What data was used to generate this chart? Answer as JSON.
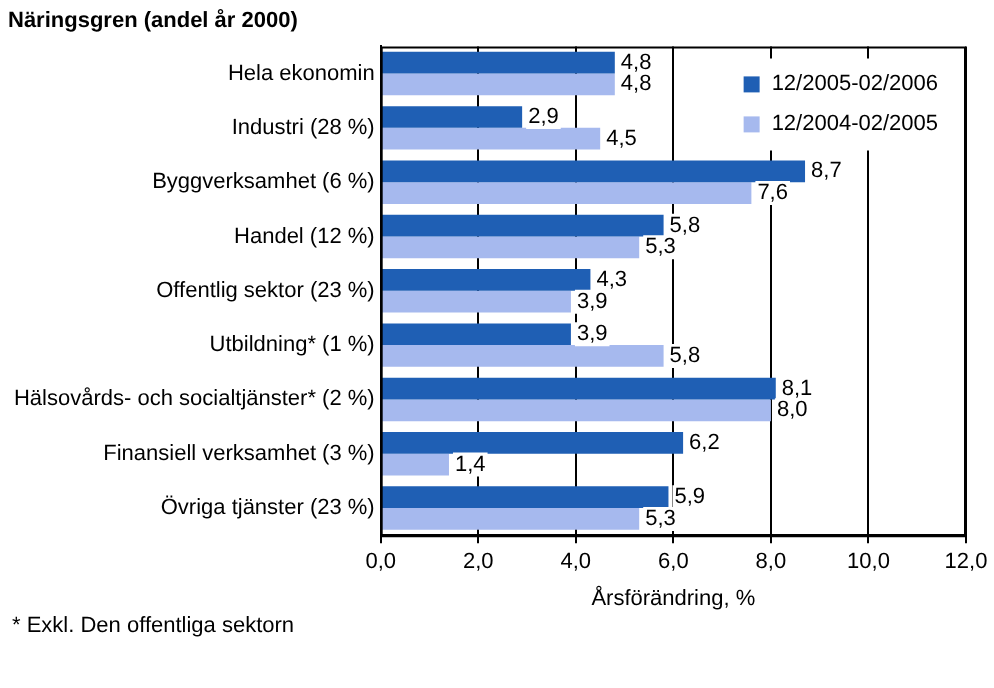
{
  "chart_data": {
    "type": "bar",
    "orientation": "horizontal",
    "title": "Näringsgren (andel år 2000)",
    "xlabel": "Årsförändring, %",
    "categories": [
      "Hela ekonomin",
      "Industri (28 %)",
      "Byggverksamhet (6 %)",
      "Handel (12 %)",
      "Offentlig sektor (23 %)",
      "Utbildning* (1 %)",
      "Hälsovårds- och socialtjänster* (2 %)",
      "Finansiell verksamhet (3 %)",
      "Övriga tjänster (23 %)"
    ],
    "series": [
      {
        "name": "12/2005-02/2006",
        "color": "#1f5fb4",
        "values": [
          4.8,
          2.9,
          8.7,
          5.8,
          4.3,
          3.9,
          8.1,
          6.2,
          5.9
        ],
        "value_labels": [
          "4,8",
          "2,9",
          "8,7",
          "5,8",
          "4,3",
          "3,9",
          "8,1",
          "6,2",
          "5,9"
        ]
      },
      {
        "name": "12/2004-02/2005",
        "color": "#a6b9ee",
        "values": [
          4.8,
          4.5,
          7.6,
          5.3,
          3.9,
          5.8,
          8.0,
          1.4,
          5.3
        ],
        "value_labels": [
          "4,8",
          "4,5",
          "7,6",
          "5,3",
          "3,9",
          "5,8",
          "8,0",
          "1,4",
          "5,3"
        ]
      }
    ],
    "xlim": [
      0,
      12
    ],
    "xticks": [
      {
        "value": 0,
        "label": "0,0"
      },
      {
        "value": 2,
        "label": "2,0"
      },
      {
        "value": 4,
        "label": "4,0"
      },
      {
        "value": 6,
        "label": "6,0"
      },
      {
        "value": 8,
        "label": "8,0"
      },
      {
        "value": 10,
        "label": "10,0"
      },
      {
        "value": 12,
        "label": "12,0"
      }
    ],
    "grid": "x",
    "legend": "top right",
    "annotations": [
      "* Exkl. Den offentliga sektorn"
    ]
  }
}
